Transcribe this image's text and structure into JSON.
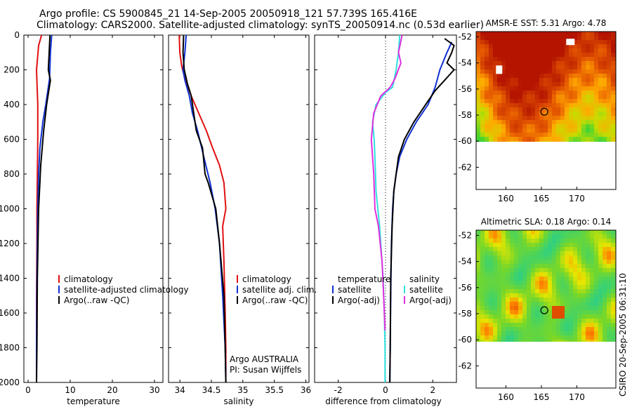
{
  "header": {
    "line1": "Argo profile: CS 5900845_21 14-Sep-2005 20050918_121 57.739S 165.416E",
    "line2": "Climatology: CARS2000. Satellite-adjusted climatology: synTS_20050914.nc (0.53d earlier)"
  },
  "side_label": "CSIRO 20-Sep-2005 06:31:10",
  "colors": {
    "climatology": "#e01010",
    "satellite": "#1030d0",
    "argo": "#000000",
    "salinity_sat": "#30e0e0",
    "salinity_argo": "#e030e0"
  },
  "chart_data": [
    {
      "type": "line",
      "id": "temperature",
      "xlabel": "temperature",
      "xlim": [
        -1,
        32
      ],
      "ylim": [
        2000,
        0
      ],
      "xticks": [
        0,
        10,
        20,
        30
      ],
      "yticks": [
        0,
        200,
        400,
        600,
        800,
        1000,
        1200,
        1400,
        1600,
        1800,
        2000
      ],
      "legend": [
        "climatology",
        "satellite-adjusted climatology",
        "Argo(..raw -QC)"
      ],
      "series": [
        {
          "name": "climatology",
          "color_key": "climatology",
          "x": [
            3.2,
            2.5,
            2.0,
            2.3,
            2.3,
            2.2,
            2.1,
            2.1,
            2.0,
            2.0,
            2.0
          ],
          "y": [
            0,
            60,
            200,
            400,
            600,
            800,
            1000,
            1200,
            1500,
            1800,
            2000
          ]
        },
        {
          "name": "satellite-adjusted climatology",
          "color_key": "satellite",
          "x": [
            5.6,
            5.3,
            5.1,
            4.2,
            3.5,
            2.8,
            2.5,
            2.3,
            2.1,
            2.0,
            2.0
          ],
          "y": [
            0,
            100,
            250,
            400,
            500,
            650,
            800,
            1000,
            1400,
            1800,
            2000
          ]
        },
        {
          "name": "Argo(..raw -QC)",
          "color_key": "argo",
          "x": [
            5.2,
            5.0,
            4.8,
            5.3,
            4.4,
            3.7,
            3.0,
            2.5,
            2.2,
            2.1,
            2.0
          ],
          "y": [
            0,
            100,
            200,
            260,
            400,
            550,
            750,
            1000,
            1400,
            1800,
            2000
          ]
        }
      ]
    },
    {
      "type": "line",
      "id": "salinity",
      "xlabel": "salinity",
      "xlim": [
        33.82,
        36.05
      ],
      "ylim": [
        2000,
        0
      ],
      "xticks": [
        34,
        34.5,
        35,
        35.5,
        36
      ],
      "legend": [
        "climatology",
        "satellite adj. clim.",
        "Argo(..raw -QC)"
      ],
      "annotations": [
        "Argo AUSTRALIA",
        "PI: Susan Wijffels"
      ],
      "series": [
        {
          "name": "climatology",
          "color_key": "climatology",
          "x": [
            33.99,
            34.0,
            34.03,
            34.08,
            34.18,
            34.3,
            34.42,
            34.52,
            34.63,
            34.7,
            34.73,
            34.68,
            34.7,
            34.72,
            34.73,
            34.73
          ],
          "y": [
            0,
            100,
            180,
            250,
            350,
            450,
            550,
            650,
            750,
            850,
            1000,
            1100,
            1300,
            1600,
            1800,
            2000
          ]
        },
        {
          "name": "satellite adj. clim.",
          "color_key": "satellite",
          "x": [
            34.1,
            34.08,
            34.05,
            34.08,
            34.15,
            34.2,
            34.28,
            34.38,
            34.48,
            34.56,
            34.63,
            34.68,
            34.72,
            34.73
          ],
          "y": [
            0,
            100,
            200,
            260,
            350,
            450,
            550,
            700,
            850,
            1000,
            1200,
            1500,
            1800,
            2000
          ]
        },
        {
          "name": "Argo(..raw -QC)",
          "color_key": "argo",
          "x": [
            34.06,
            34.05,
            34.07,
            34.12,
            34.18,
            34.22,
            34.26,
            34.36,
            34.4,
            34.45,
            34.57,
            34.63,
            34.7,
            34.72,
            34.73
          ],
          "y": [
            0,
            100,
            200,
            280,
            350,
            450,
            550,
            650,
            800,
            850,
            1000,
            1200,
            1500,
            1800,
            2000
          ]
        }
      ]
    },
    {
      "type": "line",
      "id": "difference",
      "xlabel": "difference from climatology",
      "xlim": [
        -3,
        3
      ],
      "ylim": [
        2000,
        0
      ],
      "xticks": [
        -2,
        0,
        2
      ],
      "legend_left_title": "temperature",
      "legend_right_title": "salinity",
      "legend_left": [
        "satellite",
        "Argo(-adj)"
      ],
      "legend_right": [
        "satellite",
        "Argo(-adj)"
      ],
      "series": [
        {
          "name": "temperature satellite",
          "color_key": "satellite",
          "x": [
            2.8,
            2.6,
            2.3,
            2.1,
            1.8,
            1.3,
            0.9,
            0.6,
            0.45,
            0.35,
            0.3,
            0.25,
            0.22,
            0.2,
            0.18
          ],
          "y": [
            40,
            100,
            200,
            300,
            400,
            500,
            600,
            700,
            800,
            900,
            1000,
            1200,
            1500,
            1800,
            2000
          ]
        },
        {
          "name": "temperature Argo(-adj)",
          "color_key": "argo",
          "x": [
            2.5,
            2.9,
            2.8,
            2.6,
            2.9,
            2.1,
            1.7,
            1.2,
            0.8,
            0.55,
            0.45,
            0.35,
            0.28,
            0.22,
            0.2,
            0.18
          ],
          "y": [
            20,
            60,
            100,
            160,
            200,
            320,
            400,
            500,
            600,
            700,
            800,
            900,
            1100,
            1400,
            1800,
            2000
          ]
        },
        {
          "name": "salinity satellite",
          "color_key": "salinity_sat",
          "x": [
            0.6,
            0.55,
            0.45,
            0.3,
            0.0,
            -0.4,
            -0.55,
            -0.48,
            -0.45,
            -0.4,
            -0.25,
            -0.1,
            -0.05,
            -0.02,
            -0.02
          ],
          "y": [
            0,
            100,
            200,
            300,
            330,
            400,
            500,
            600,
            700,
            900,
            1100,
            1400,
            1600,
            1800,
            2000
          ]
        },
        {
          "name": "salinity Argo(-adj)",
          "color_key": "salinity_argo",
          "x": [
            0.7,
            0.55,
            0.65,
            0.4,
            0.2,
            -0.2,
            -0.5,
            -0.6,
            -0.5,
            -0.45,
            -0.3,
            -0.15,
            -0.08,
            -0.02
          ],
          "y": [
            0,
            100,
            160,
            250,
            300,
            350,
            450,
            600,
            800,
            1000,
            1100,
            1300,
            1500,
            1700
          ]
        }
      ]
    },
    {
      "type": "heatmap",
      "id": "sst_map",
      "title": "AMSR-E SST: 5.31 Argo: 4.78",
      "xticks": [
        160,
        165,
        170
      ],
      "yticks": [
        -52,
        -54,
        -56,
        -58,
        -60,
        -62
      ],
      "marker": {
        "lon": 165.416,
        "lat": -57.739
      }
    },
    {
      "type": "heatmap",
      "id": "sla_map",
      "title": "Altimetric SLA: 0.18 Argo: 0.14",
      "xticks": [
        160,
        165,
        170
      ],
      "yticks": [
        -52,
        -54,
        -56,
        -58,
        -60,
        -62
      ],
      "marker": {
        "lon": 165.416,
        "lat": -57.739
      }
    }
  ]
}
